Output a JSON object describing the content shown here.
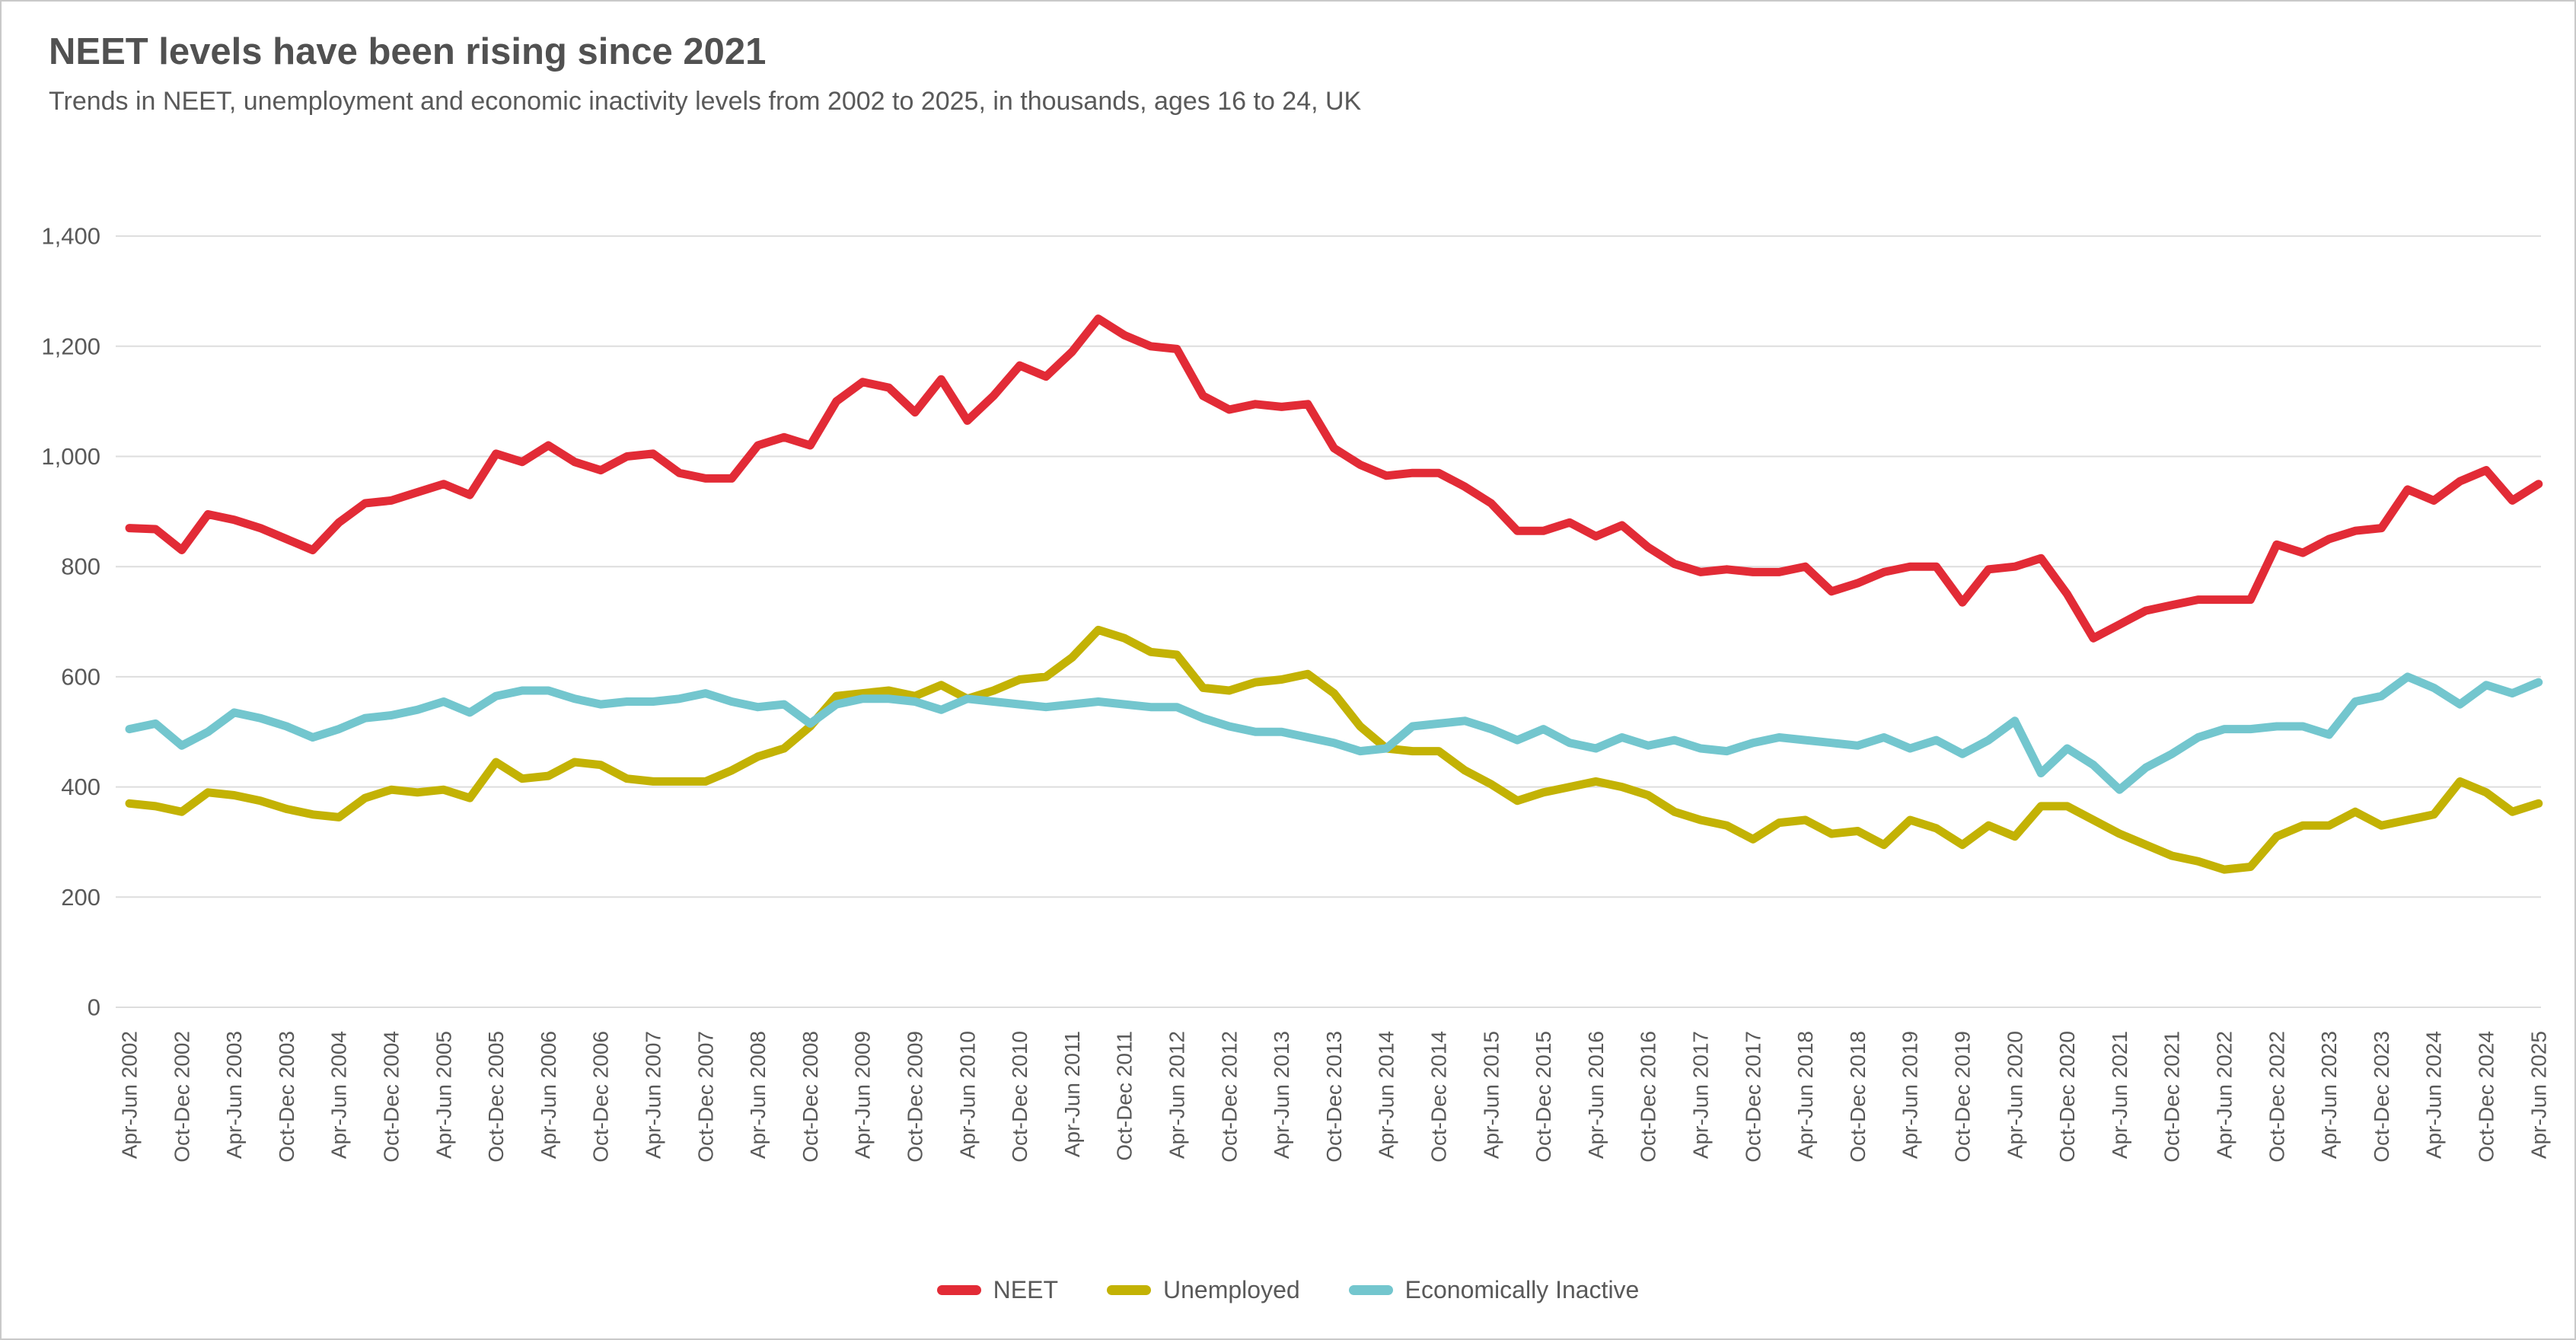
{
  "page": {
    "title": "NEET levels have been rising since 2021",
    "subtitle": "Trends in NEET, unemployment and economic inactivity levels from 2002 to 2025, in thousands, ages 16 to 24, UK"
  },
  "colors": {
    "title_text": "#515151",
    "body_text": "#595959",
    "gridline": "#dddddd",
    "neet_red": "#e22b36",
    "unemployed_yellow": "#c3b204",
    "inactive_teal": "#73c6ce"
  },
  "chart_data": {
    "type": "line",
    "title": "NEET levels have been rising since 2021",
    "subtitle": "Trends in NEET, unemployment and economic inactivity levels from 2002 to 2025, in thousands, ages 16 to 24, UK",
    "unit": "thousands",
    "grid": "horizontal-only",
    "legend_position": "bottom-center",
    "y_axis": {
      "min": 0,
      "max": 1400,
      "step": 200,
      "tick_labels": [
        "1,400",
        "1,200",
        "1,000",
        "800",
        "600",
        "400",
        "200",
        "0"
      ]
    },
    "x_axis": {
      "tick_label_rotation": -90,
      "points_per_tick": 2,
      "tick_labels": [
        "Apr-Jun 2002",
        "Oct-Dec 2002",
        "Apr-Jun 2003",
        "Oct-Dec 2003",
        "Apr-Jun 2004",
        "Oct-Dec 2004",
        "Apr-Jun 2005",
        "Oct-Dec 2005",
        "Apr-Jun 2006",
        "Oct-Dec 2006",
        "Apr-Jun 2007",
        "Oct-Dec 2007",
        "Apr-Jun 2008",
        "Oct-Dec 2008",
        "Apr-Jun 2009",
        "Oct-Dec 2009",
        "Apr-Jun 2010",
        "Oct-Dec 2010",
        "Apr-Jun 2011",
        "Oct-Dec 2011",
        "Apr-Jun 2012",
        "Oct-Dec 2012",
        "Apr-Jun 2013",
        "Oct-Dec 2013",
        "Apr-Jun 2014",
        "Oct-Dec 2014",
        "Apr-Jun 2015",
        "Oct-Dec 2015",
        "Apr-Jun 2016",
        "Oct-Dec 2016",
        "Apr-Jun 2017",
        "Oct-Dec 2017",
        "Apr-Jun 2018",
        "Oct-Dec 2018",
        "Apr-Jun 2019",
        "Oct-Dec 2019",
        "Apr-Jun 2020",
        "Oct-Dec 2020",
        "Apr-Jun 2021",
        "Oct-Dec 2021",
        "Apr-Jun 2022",
        "Oct-Dec 2022",
        "Apr-Jun 2023",
        "Oct-Dec 2023",
        "Apr-Jun 2024",
        "Oct-Dec 2024",
        "Apr-Jun 2025"
      ]
    },
    "series": [
      {
        "name": "NEET",
        "color": "#e22b36",
        "values": [
          870,
          868,
          830,
          895,
          885,
          870,
          850,
          830,
          880,
          915,
          920,
          935,
          950,
          930,
          1005,
          990,
          1020,
          990,
          975,
          1000,
          1005,
          970,
          960,
          960,
          1020,
          1035,
          1020,
          1100,
          1135,
          1125,
          1080,
          1140,
          1065,
          1110,
          1165,
          1145,
          1190,
          1250,
          1220,
          1200,
          1195,
          1110,
          1085,
          1095,
          1090,
          1095,
          1015,
          985,
          965,
          970,
          970,
          945,
          915,
          865,
          865,
          880,
          855,
          875,
          835,
          805,
          790,
          795,
          790,
          790,
          800,
          755,
          770,
          790,
          800,
          800,
          735,
          795,
          800,
          815,
          750,
          670,
          695,
          720,
          730,
          740,
          740,
          740,
          840,
          825,
          850,
          865,
          870,
          940,
          920,
          955,
          975,
          920,
          950
        ]
      },
      {
        "name": "Unemployed",
        "color": "#c3b204",
        "values": [
          370,
          365,
          355,
          390,
          385,
          375,
          360,
          350,
          345,
          380,
          395,
          390,
          395,
          380,
          445,
          415,
          420,
          445,
          440,
          415,
          410,
          410,
          410,
          430,
          455,
          470,
          510,
          565,
          570,
          575,
          565,
          585,
          560,
          575,
          595,
          600,
          635,
          685,
          670,
          645,
          640,
          580,
          575,
          590,
          595,
          605,
          570,
          510,
          470,
          465,
          465,
          430,
          405,
          375,
          390,
          400,
          410,
          400,
          385,
          355,
          340,
          330,
          305,
          335,
          340,
          315,
          320,
          295,
          340,
          325,
          295,
          330,
          310,
          365,
          365,
          340,
          315,
          295,
          275,
          265,
          250,
          255,
          310,
          330,
          330,
          355,
          330,
          340,
          350,
          410,
          390,
          355,
          370
        ]
      },
      {
        "name": "Economically Inactive",
        "color": "#73c6ce",
        "values": [
          505,
          515,
          475,
          500,
          535,
          525,
          510,
          490,
          505,
          525,
          530,
          540,
          555,
          535,
          565,
          575,
          575,
          560,
          550,
          555,
          555,
          560,
          570,
          555,
          545,
          550,
          515,
          550,
          560,
          560,
          555,
          540,
          560,
          555,
          550,
          545,
          550,
          555,
          550,
          545,
          545,
          525,
          510,
          500,
          500,
          490,
          480,
          465,
          470,
          510,
          515,
          520,
          505,
          485,
          505,
          480,
          470,
          490,
          475,
          485,
          470,
          465,
          480,
          490,
          485,
          480,
          475,
          490,
          470,
          485,
          460,
          485,
          520,
          425,
          470,
          440,
          395,
          435,
          460,
          490,
          505,
          505,
          510,
          510,
          495,
          555,
          565,
          600,
          580,
          550,
          585,
          570,
          590
        ]
      }
    ]
  }
}
